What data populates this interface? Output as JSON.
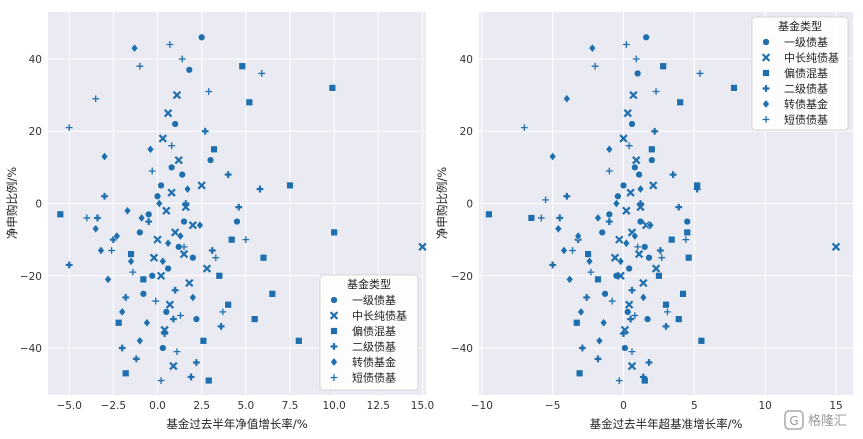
{
  "chart_data": [
    {
      "type": "scatter",
      "title": "",
      "xlabel": "基金过去半年净值增长率/%",
      "ylabel": "净申购比例/%",
      "xlim": [
        -6.2,
        15.2
      ],
      "ylim": [
        -53,
        53
      ],
      "xticks": [
        -5.0,
        -2.5,
        0.0,
        2.5,
        5.0,
        7.5,
        10.0,
        12.5,
        15.0
      ],
      "xtick_labels": [
        "−5.0",
        "−2.5",
        "0.0",
        "2.5",
        "5.0",
        "7.5",
        "10.0",
        "12.5",
        "15.0"
      ],
      "yticks": [
        -40,
        -20,
        0,
        20,
        40
      ],
      "ytick_labels": [
        "−40",
        "−20",
        "0",
        "20",
        "40"
      ],
      "grid": true,
      "marker_color": "#1f6fae",
      "legend": {
        "title": "基金类型",
        "placement": "lower-right",
        "entries": [
          {
            "label": "一级债基",
            "marker": "circle"
          },
          {
            "label": "中长纯债基",
            "marker": "x"
          },
          {
            "label": "偏债混基",
            "marker": "square"
          },
          {
            "label": "二级债基",
            "marker": "plus"
          },
          {
            "label": "转债基金",
            "marker": "diamond"
          },
          {
            "label": "短债债基",
            "marker": "thin-plus"
          }
        ]
      },
      "series": [
        {
          "name": "一级债基",
          "points": [
            [
              0.2,
              5
            ],
            [
              1.2,
              -12
            ],
            [
              -0.3,
              -20
            ],
            [
              2.5,
              46
            ],
            [
              1.8,
              37
            ],
            [
              0.8,
              10
            ],
            [
              3.0,
              12
            ],
            [
              -1.0,
              -8
            ],
            [
              0.5,
              -30
            ],
            [
              1.5,
              -5
            ],
            [
              0.0,
              2
            ],
            [
              2.0,
              -15
            ],
            [
              -0.5,
              -3
            ],
            [
              1.0,
              22
            ],
            [
              0.3,
              -40
            ],
            [
              4.5,
              -5
            ],
            [
              0.6,
              -18
            ],
            [
              1.4,
              8
            ],
            [
              -0.8,
              -25
            ],
            [
              2.2,
              -32
            ]
          ]
        },
        {
          "name": "中长纯债基",
          "points": [
            [
              15.0,
              -12
            ],
            [
              0.5,
              -2
            ],
            [
              1.0,
              -8
            ],
            [
              1.5,
              -14
            ],
            [
              0.2,
              -20
            ],
            [
              0.8,
              3
            ],
            [
              2.0,
              -6
            ],
            [
              1.2,
              12
            ],
            [
              0.0,
              -10
            ],
            [
              0.7,
              -28
            ],
            [
              1.8,
              -22
            ],
            [
              1.1,
              30
            ],
            [
              0.4,
              -35
            ],
            [
              2.5,
              5
            ],
            [
              0.9,
              -45
            ],
            [
              0.3,
              18
            ],
            [
              1.6,
              -1
            ],
            [
              -0.2,
              -15
            ],
            [
              2.8,
              -18
            ],
            [
              0.6,
              25
            ]
          ]
        },
        {
          "name": "偏债混基",
          "points": [
            [
              -5.5,
              -3
            ],
            [
              9.9,
              32
            ],
            [
              10.0,
              -8
            ],
            [
              8.0,
              -38
            ],
            [
              7.5,
              5
            ],
            [
              6.0,
              -15
            ],
            [
              5.2,
              28
            ],
            [
              4.8,
              38
            ],
            [
              3.5,
              -20
            ],
            [
              -1.5,
              -14
            ],
            [
              4.0,
              -28
            ],
            [
              6.5,
              -25
            ],
            [
              -1.8,
              -47
            ],
            [
              2.9,
              -49
            ],
            [
              5.5,
              -32
            ],
            [
              3.2,
              15
            ],
            [
              -2.2,
              -33
            ],
            [
              -0.8,
              -21
            ],
            [
              4.2,
              -10
            ],
            [
              2.6,
              -38
            ]
          ]
        },
        {
          "name": "二级债基",
          "points": [
            [
              -5.0,
              -17
            ],
            [
              -3.0,
              2
            ],
            [
              -2.5,
              -10
            ],
            [
              -1.8,
              -26
            ],
            [
              -1.2,
              -43
            ],
            [
              -0.5,
              -5
            ],
            [
              0.4,
              -36
            ],
            [
              1.0,
              -24
            ],
            [
              1.6,
              0
            ],
            [
              2.2,
              -44
            ],
            [
              3.1,
              -13
            ],
            [
              4.0,
              8
            ],
            [
              4.6,
              -1
            ],
            [
              5.8,
              4
            ],
            [
              -2.0,
              -40
            ],
            [
              0.9,
              -32
            ],
            [
              1.9,
              -48
            ],
            [
              3.6,
              -34
            ],
            [
              -3.4,
              -4
            ],
            [
              2.7,
              20
            ]
          ]
        },
        {
          "name": "转债基金",
          "points": [
            [
              -3.0,
              13
            ],
            [
              -1.3,
              43
            ],
            [
              -2.0,
              -30
            ],
            [
              -0.9,
              -4
            ],
            [
              0.3,
              -16
            ],
            [
              -2.3,
              -9
            ],
            [
              -1.5,
              -16
            ],
            [
              0.1,
              0
            ],
            [
              -3.5,
              -7
            ],
            [
              -0.6,
              -33
            ],
            [
              1.3,
              -9
            ],
            [
              2.0,
              -26
            ],
            [
              -0.4,
              15
            ],
            [
              1.7,
              4
            ],
            [
              -2.8,
              -21
            ],
            [
              0.6,
              -11
            ],
            [
              -1.0,
              -38
            ],
            [
              2.4,
              -6
            ],
            [
              -3.2,
              -13
            ],
            [
              -1.7,
              -2
            ]
          ]
        },
        {
          "name": "短债债基",
          "points": [
            [
              -5.0,
              21
            ],
            [
              -3.5,
              29
            ],
            [
              5.9,
              36
            ],
            [
              5.0,
              -10
            ],
            [
              -4.0,
              -4
            ],
            [
              -1.0,
              38
            ],
            [
              0.7,
              44
            ],
            [
              1.4,
              40
            ],
            [
              -0.1,
              -27
            ],
            [
              1.1,
              -41
            ],
            [
              2.9,
              31
            ],
            [
              3.7,
              -30
            ],
            [
              -1.4,
              -19
            ],
            [
              0.2,
              -49
            ],
            [
              1.5,
              -12
            ],
            [
              0.8,
              16
            ],
            [
              -2.6,
              -13
            ],
            [
              1.3,
              -31
            ],
            [
              3.3,
              -15
            ],
            [
              -0.3,
              9
            ]
          ]
        }
      ]
    },
    {
      "type": "scatter",
      "title": "",
      "xlabel": "基金过去半年超基准增长率/%",
      "ylabel": "净申购比例/%",
      "xlim": [
        -10.2,
        16.2
      ],
      "ylim": [
        -53,
        53
      ],
      "xticks": [
        -10,
        -5,
        0,
        5,
        10,
        15
      ],
      "xtick_labels": [
        "−10",
        "−5",
        "0",
        "5",
        "10",
        "15"
      ],
      "yticks": [
        -40,
        -20,
        0,
        20,
        40
      ],
      "ytick_labels": [
        "−40",
        "−20",
        "0",
        "20",
        "40"
      ],
      "grid": true,
      "marker_color": "#1f6fae",
      "legend": {
        "title": "基金类型",
        "placement": "upper-right",
        "entries": [
          {
            "label": "一级债基",
            "marker": "circle"
          },
          {
            "label": "中长纯债基",
            "marker": "x"
          },
          {
            "label": "偏债混基",
            "marker": "square"
          },
          {
            "label": "二级债基",
            "marker": "plus"
          },
          {
            "label": "转债基金",
            "marker": "diamond"
          },
          {
            "label": "短债债基",
            "marker": "thin-plus"
          }
        ]
      },
      "series": [
        {
          "name": "一级债基",
          "points": [
            [
              4.5,
              -5
            ],
            [
              0.0,
              5
            ],
            [
              1.6,
              46
            ],
            [
              1.0,
              36
            ],
            [
              -0.5,
              -20
            ],
            [
              0.8,
              10
            ],
            [
              1.5,
              -12
            ],
            [
              2.0,
              12
            ],
            [
              -1.5,
              -8
            ],
            [
              0.3,
              -30
            ],
            [
              1.2,
              -5
            ],
            [
              -0.4,
              2
            ],
            [
              1.8,
              -15
            ],
            [
              -1.0,
              -3
            ],
            [
              0.6,
              22
            ],
            [
              0.1,
              -40
            ],
            [
              0.4,
              -18
            ],
            [
              1.1,
              8
            ],
            [
              -1.3,
              -25
            ],
            [
              1.7,
              -32
            ]
          ]
        },
        {
          "name": "中长纯债基",
          "points": [
            [
              15.0,
              -12
            ],
            [
              0.2,
              -2
            ],
            [
              0.6,
              -8
            ],
            [
              1.1,
              -14
            ],
            [
              -0.2,
              -20
            ],
            [
              0.5,
              3
            ],
            [
              1.6,
              -6
            ],
            [
              0.9,
              12
            ],
            [
              -0.3,
              -10
            ],
            [
              0.4,
              -28
            ],
            [
              1.4,
              -22
            ],
            [
              0.7,
              30
            ],
            [
              0.1,
              -35
            ],
            [
              2.1,
              5
            ],
            [
              0.6,
              -45
            ],
            [
              0.0,
              18
            ],
            [
              1.2,
              -1
            ],
            [
              -0.6,
              -15
            ],
            [
              2.3,
              -18
            ],
            [
              0.3,
              25
            ]
          ]
        },
        {
          "name": "偏债混基",
          "points": [
            [
              -9.5,
              -3
            ],
            [
              -6.5,
              -4
            ],
            [
              7.8,
              32
            ],
            [
              4.5,
              -8
            ],
            [
              5.5,
              -38
            ],
            [
              5.2,
              5
            ],
            [
              4.6,
              -15
            ],
            [
              4.0,
              28
            ],
            [
              2.8,
              38
            ],
            [
              2.5,
              -20
            ],
            [
              -2.5,
              -14
            ],
            [
              3.0,
              -28
            ],
            [
              4.2,
              -25
            ],
            [
              -3.1,
              -47
            ],
            [
              1.5,
              -49
            ],
            [
              3.9,
              -32
            ],
            [
              2.0,
              15
            ],
            [
              -3.3,
              -33
            ],
            [
              -1.8,
              -21
            ],
            [
              3.4,
              -10
            ]
          ]
        },
        {
          "name": "二级债基",
          "points": [
            [
              -5.0,
              -17
            ],
            [
              -4.0,
              2
            ],
            [
              -3.2,
              -10
            ],
            [
              -2.6,
              -26
            ],
            [
              -1.8,
              -43
            ],
            [
              -1.0,
              -5
            ],
            [
              0.0,
              -36
            ],
            [
              0.6,
              -24
            ],
            [
              1.2,
              0
            ],
            [
              1.8,
              -44
            ],
            [
              2.6,
              -13
            ],
            [
              3.5,
              8
            ],
            [
              3.9,
              -1
            ],
            [
              5.2,
              4
            ],
            [
              -2.9,
              -40
            ],
            [
              0.5,
              -32
            ],
            [
              1.4,
              -48
            ],
            [
              3.0,
              -34
            ],
            [
              -4.5,
              -4
            ],
            [
              2.2,
              20
            ]
          ]
        },
        {
          "name": "转债基金",
          "points": [
            [
              -5.0,
              13
            ],
            [
              -2.2,
              43
            ],
            [
              -4.0,
              29
            ],
            [
              -3.0,
              -30
            ],
            [
              -1.8,
              -4
            ],
            [
              -0.2,
              -16
            ],
            [
              -3.2,
              -9
            ],
            [
              -2.4,
              -16
            ],
            [
              -0.5,
              0
            ],
            [
              -4.6,
              -7
            ],
            [
              -1.4,
              -33
            ],
            [
              0.8,
              -9
            ],
            [
              1.4,
              -26
            ],
            [
              -1.0,
              15
            ],
            [
              1.2,
              4
            ],
            [
              -3.8,
              -21
            ],
            [
              0.2,
              -11
            ],
            [
              -1.7,
              -38
            ],
            [
              1.9,
              -6
            ],
            [
              -4.2,
              -13
            ]
          ]
        },
        {
          "name": "短债债基",
          "points": [
            [
              -7.0,
              21
            ],
            [
              -5.5,
              1
            ],
            [
              5.4,
              36
            ],
            [
              4.4,
              -10
            ],
            [
              -5.8,
              -4
            ],
            [
              -2.0,
              38
            ],
            [
              0.2,
              44
            ],
            [
              0.9,
              40
            ],
            [
              -0.8,
              -27
            ],
            [
              0.6,
              -41
            ],
            [
              2.3,
              31
            ],
            [
              3.1,
              -30
            ],
            [
              -2.3,
              -19
            ],
            [
              -0.3,
              -49
            ],
            [
              1.0,
              -12
            ],
            [
              0.4,
              16
            ],
            [
              -3.6,
              -13
            ],
            [
              0.8,
              -31
            ],
            [
              2.7,
              -15
            ],
            [
              -1.0,
              9
            ]
          ]
        }
      ]
    }
  ],
  "watermark": "格隆汇",
  "watermark_mark": "G"
}
